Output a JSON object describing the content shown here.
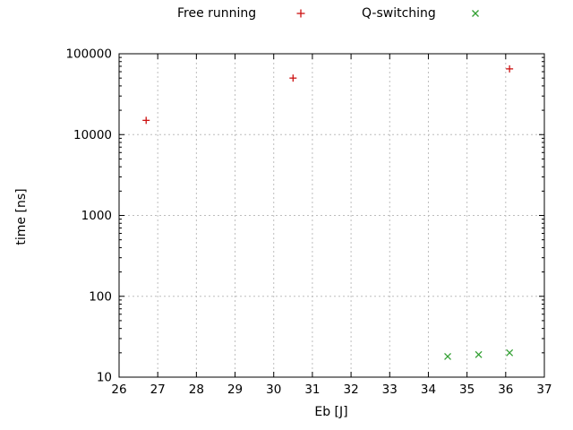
{
  "chart_data": {
    "type": "scatter",
    "title": "",
    "xlabel": "Eb [J]",
    "ylabel": "time [ns]",
    "xlim": [
      26,
      37
    ],
    "ylim": [
      10,
      100000
    ],
    "x_scale": "linear",
    "y_scale": "log",
    "grid": true,
    "grid_color": "#bdbdbd",
    "axis_color": "#000000",
    "legend_position": "top-center",
    "x_ticks": [
      26,
      27,
      28,
      29,
      30,
      31,
      32,
      33,
      34,
      35,
      36,
      37
    ],
    "y_ticks": [
      10,
      100,
      1000,
      10000,
      100000
    ],
    "series": [
      {
        "name": "Free running",
        "marker": "plus",
        "color": "#cc1111",
        "points": [
          [
            26.7,
            15000
          ],
          [
            30.5,
            50000
          ],
          [
            36.1,
            65000
          ]
        ]
      },
      {
        "name": "Q-switching",
        "marker": "cross",
        "color": "#33a033",
        "points": [
          [
            34.5,
            18
          ],
          [
            35.3,
            19
          ],
          [
            36.1,
            20
          ]
        ]
      }
    ]
  }
}
